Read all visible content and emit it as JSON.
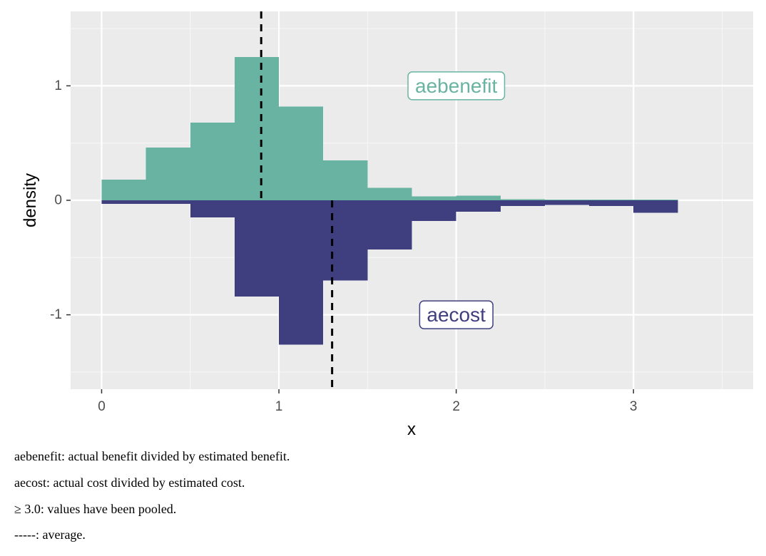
{
  "chart_data": {
    "type": "bar",
    "xlabel": "x",
    "ylabel": "density",
    "xlim": [
      -0.175,
      3.675
    ],
    "ylim": [
      -1.65,
      1.65
    ],
    "xticks": [
      0,
      1,
      2,
      3
    ],
    "xtick_labels": [
      "0",
      "1",
      "2",
      "3"
    ],
    "yticks": [
      -1,
      0,
      1
    ],
    "ytick_labels": [
      "-1",
      "0",
      "1"
    ],
    "grid": true,
    "bin_width": 0.25,
    "series": [
      {
        "name": "aebenefit",
        "direction": "up",
        "color": "#69b3a2",
        "bins": [
          {
            "x0": 0.0,
            "x1": 0.25,
            "value": 0.18
          },
          {
            "x0": 0.25,
            "x1": 0.5,
            "value": 0.46
          },
          {
            "x0": 0.5,
            "x1": 0.75,
            "value": 0.68
          },
          {
            "x0": 0.75,
            "x1": 1.0,
            "value": 1.25
          },
          {
            "x0": 1.0,
            "x1": 1.25,
            "value": 0.82
          },
          {
            "x0": 1.25,
            "x1": 1.5,
            "value": 0.35
          },
          {
            "x0": 1.5,
            "x1": 1.75,
            "value": 0.11
          },
          {
            "x0": 1.75,
            "x1": 2.0,
            "value": 0.035
          },
          {
            "x0": 2.0,
            "x1": 2.25,
            "value": 0.04
          },
          {
            "x0": 2.25,
            "x1": 2.5,
            "value": 0.01
          },
          {
            "x0": 2.5,
            "x1": 2.75,
            "value": 0.005
          },
          {
            "x0": 2.75,
            "x1": 3.0,
            "value": 0.005
          },
          {
            "x0": 3.0,
            "x1": 3.25,
            "value": 0.005
          }
        ],
        "mean": 0.9,
        "label_pos": {
          "x": 2.0,
          "y": 1.0
        }
      },
      {
        "name": "aecost",
        "direction": "down",
        "color": "#3f3f7f",
        "bins": [
          {
            "x0": 0.0,
            "x1": 0.25,
            "value": 0.03
          },
          {
            "x0": 0.25,
            "x1": 0.5,
            "value": 0.03
          },
          {
            "x0": 0.5,
            "x1": 0.75,
            "value": 0.15
          },
          {
            "x0": 0.75,
            "x1": 1.0,
            "value": 0.84
          },
          {
            "x0": 1.0,
            "x1": 1.25,
            "value": 1.26
          },
          {
            "x0": 1.25,
            "x1": 1.5,
            "value": 0.7
          },
          {
            "x0": 1.5,
            "x1": 1.75,
            "value": 0.43
          },
          {
            "x0": 1.75,
            "x1": 2.0,
            "value": 0.18
          },
          {
            "x0": 2.0,
            "x1": 2.25,
            "value": 0.1
          },
          {
            "x0": 2.25,
            "x1": 2.5,
            "value": 0.05
          },
          {
            "x0": 2.5,
            "x1": 2.75,
            "value": 0.04
          },
          {
            "x0": 2.75,
            "x1": 3.0,
            "value": 0.05
          },
          {
            "x0": 3.0,
            "x1": 3.25,
            "value": 0.11
          }
        ],
        "mean": 1.3,
        "label_pos": {
          "x": 2.0,
          "y": -1.0
        }
      }
    ],
    "colors": {
      "panel_bg": "#ebebeb",
      "grid_major": "#ffffff",
      "grid_minor": "#f5f5f5",
      "mean_line": "#000000"
    }
  },
  "notes": [
    "aebenefit: actual benefit divided by estimated benefit.",
    "aecost: actual cost divided by estimated cost.",
    "≥ 3.0: values have been pooled.",
    "-----: average."
  ]
}
